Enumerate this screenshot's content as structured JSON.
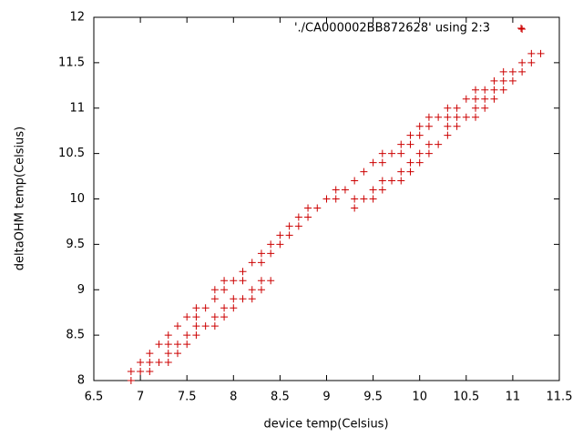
{
  "chart_data": {
    "type": "scatter",
    "xlabel": "device temp(Celsius)",
    "ylabel": "deltaOHM temp(Celsius)",
    "xlim": [
      6.5,
      11.5
    ],
    "ylim": [
      8,
      12
    ],
    "xticks": [
      6.5,
      7,
      7.5,
      8,
      8.5,
      9,
      9.5,
      10,
      10.5,
      11,
      11.5
    ],
    "yticks": [
      8,
      8.5,
      9,
      9.5,
      10,
      10.5,
      11,
      11.5,
      12
    ],
    "legend": "upper right",
    "series": [
      {
        "name": "'./CA000002BB872628' using 2:3",
        "color": "#cc0000",
        "x": [
          6.9,
          6.9,
          7.0,
          7.0,
          7.1,
          7.1,
          7.1,
          7.2,
          7.2,
          7.3,
          7.3,
          7.3,
          7.3,
          7.4,
          7.4,
          7.4,
          7.5,
          7.5,
          7.5,
          7.6,
          7.6,
          7.6,
          7.6,
          7.7,
          7.7,
          7.8,
          7.8,
          7.8,
          7.8,
          7.9,
          7.9,
          7.9,
          7.9,
          8.0,
          8.0,
          8.0,
          8.1,
          8.1,
          8.1,
          8.2,
          8.2,
          8.2,
          8.3,
          8.3,
          8.3,
          8.3,
          8.4,
          8.4,
          8.4,
          8.5,
          8.5,
          8.6,
          8.6,
          8.7,
          8.7,
          8.8,
          8.8,
          8.9,
          9.0,
          9.1,
          9.1,
          9.2,
          9.3,
          9.3,
          9.3,
          9.4,
          9.4,
          9.5,
          9.5,
          9.5,
          9.6,
          9.6,
          9.6,
          9.6,
          9.7,
          9.7,
          9.8,
          9.8,
          9.8,
          9.8,
          9.9,
          9.9,
          9.9,
          9.9,
          10.0,
          10.0,
          10.0,
          10.0,
          10.1,
          10.1,
          10.1,
          10.1,
          10.2,
          10.2,
          10.3,
          10.3,
          10.3,
          10.3,
          10.4,
          10.4,
          10.4,
          10.5,
          10.5,
          10.6,
          10.6,
          10.6,
          10.6,
          10.7,
          10.7,
          10.7,
          10.8,
          10.8,
          10.8,
          10.9,
          10.9,
          10.9,
          11.0,
          11.0,
          11.1,
          11.1,
          11.1,
          11.2,
          11.2,
          11.3
        ],
        "values": [
          8.0,
          8.1,
          8.1,
          8.2,
          8.1,
          8.2,
          8.3,
          8.2,
          8.4,
          8.2,
          8.3,
          8.4,
          8.5,
          8.3,
          8.4,
          8.6,
          8.4,
          8.5,
          8.7,
          8.5,
          8.6,
          8.7,
          8.8,
          8.6,
          8.8,
          8.6,
          8.7,
          8.9,
          9.0,
          8.7,
          8.8,
          9.0,
          9.1,
          8.8,
          8.9,
          9.1,
          8.9,
          9.1,
          9.2,
          8.9,
          9.0,
          9.3,
          9.0,
          9.1,
          9.3,
          9.4,
          9.1,
          9.4,
          9.5,
          9.5,
          9.6,
          9.6,
          9.7,
          9.7,
          9.8,
          9.8,
          9.9,
          9.9,
          10.0,
          10.0,
          10.1,
          10.1,
          9.9,
          10.0,
          10.2,
          10.0,
          10.3,
          10.0,
          10.1,
          10.4,
          10.1,
          10.2,
          10.4,
          10.5,
          10.2,
          10.5,
          10.2,
          10.3,
          10.5,
          10.6,
          10.3,
          10.4,
          10.6,
          10.7,
          10.4,
          10.5,
          10.7,
          10.8,
          10.5,
          10.6,
          10.8,
          10.9,
          10.6,
          10.9,
          10.7,
          10.8,
          10.9,
          11.0,
          10.8,
          10.9,
          11.0,
          10.9,
          11.1,
          10.9,
          11.0,
          11.1,
          11.2,
          11.0,
          11.1,
          11.2,
          11.1,
          11.2,
          11.3,
          11.2,
          11.3,
          11.4,
          11.3,
          11.4,
          11.4,
          11.5,
          11.87,
          11.5,
          11.6,
          11.6
        ]
      }
    ]
  }
}
